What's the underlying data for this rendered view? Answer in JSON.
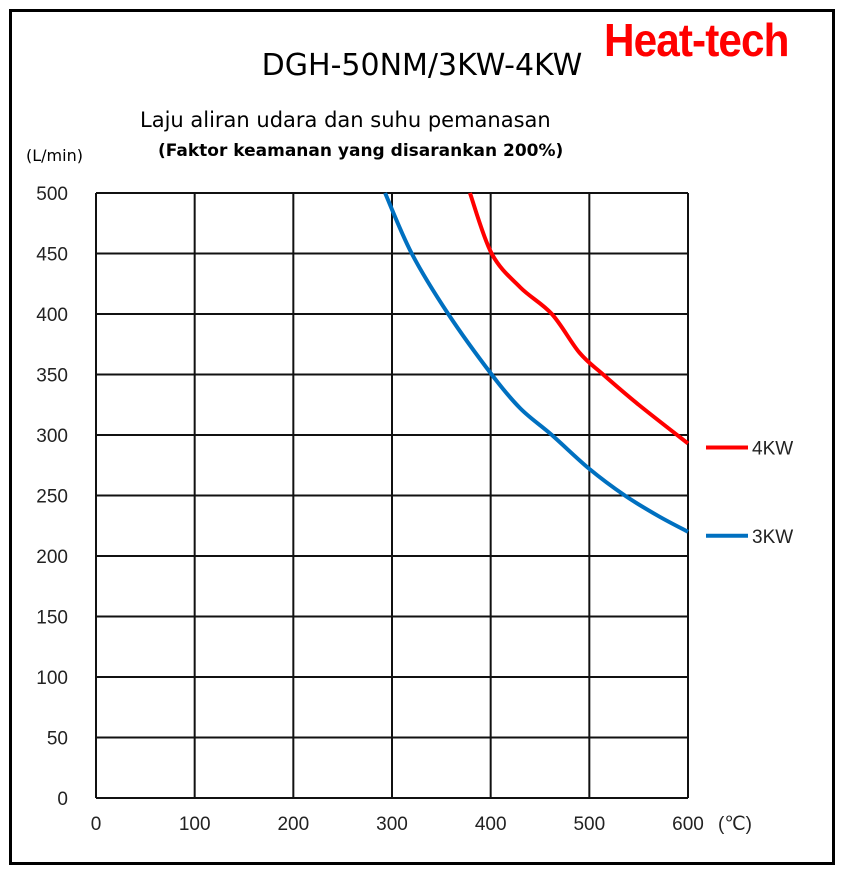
{
  "logo": "Heat-tech",
  "chart_data": {
    "type": "line",
    "title": "DGH-50NM/3KW-4KW",
    "subtitle": "Laju aliran udara dan suhu pemanasan",
    "subtitle2": "(Faktor keamanan yang disarankan 200%)",
    "xlabel": "(℃)",
    "ylabel": "(L/min)",
    "xlim": [
      0,
      600
    ],
    "ylim": [
      0,
      500
    ],
    "xticks": [
      0,
      100,
      200,
      300,
      400,
      500,
      600
    ],
    "yticks": [
      0,
      50,
      100,
      150,
      200,
      250,
      300,
      350,
      400,
      450,
      500
    ],
    "grid": true,
    "legend": "right",
    "series": [
      {
        "name": "4KW",
        "color": "#ff0000",
        "x": [
          379,
          401,
          430,
          462,
          490,
          514,
          550,
          600
        ],
        "y": [
          500,
          450,
          422,
          400,
          368,
          350,
          325,
          293
        ]
      },
      {
        "name": "3KW",
        "color": "#0070c0",
        "x": [
          293,
          320,
          357,
          401,
          430,
          462,
          500,
          536,
          570,
          600
        ],
        "y": [
          500,
          450,
          400,
          350,
          322,
          300,
          272,
          250,
          233,
          220
        ]
      }
    ]
  }
}
